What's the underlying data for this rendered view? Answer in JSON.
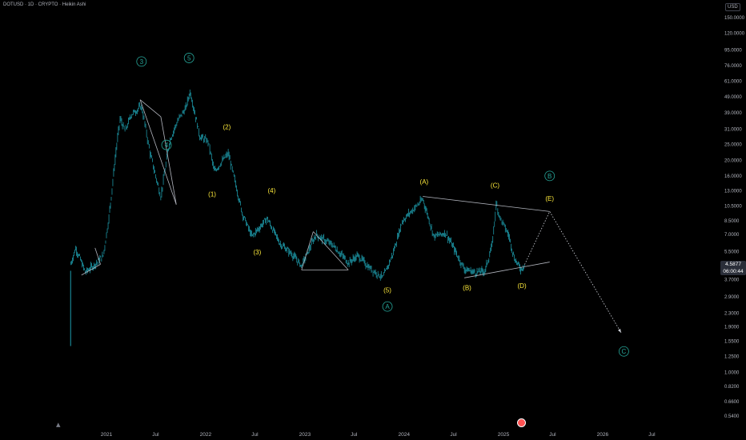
{
  "header": {
    "ticker": "DOTUSD · 1D · CRYPTO · Heikin Ashi",
    "currency": "USD"
  },
  "price_tag": {
    "price": "4.5877",
    "countdown": "06:00:44"
  },
  "icons": {
    "logo": "tradingview-logo-icon",
    "cursor": "replay-cursor-icon"
  },
  "colors": {
    "background": "#000000",
    "candles": "#26c6da",
    "wave_labels_primary": "#26a69a",
    "wave_labels_secondary": "#ffeb3b",
    "trendlines": "#b2b5be"
  },
  "chart_data": {
    "type": "line",
    "scale": "log",
    "style": "Heikin Ashi candles",
    "x_ticks": [
      "2021",
      "Jul",
      "2022",
      "Jul",
      "2023",
      "Jul",
      "2024",
      "Jul",
      "2025",
      "Jul",
      "2026",
      "Jul"
    ],
    "y_ticks": [
      "150.0000",
      "120.0000",
      "95.0000",
      "76.0000",
      "61.0000",
      "49.0000",
      "39.0000",
      "31.0000",
      "25.0000",
      "20.0000",
      "16.0000",
      "13.0000",
      "10.5000",
      "8.5000",
      "7.0000",
      "5.5000",
      "3.7000",
      "2.9000",
      "2.3000",
      "1.9000",
      "1.5500",
      "1.2500",
      "1.0000",
      "0.8200",
      "0.6600",
      "0.5400"
    ],
    "ylim": [
      0.5,
      165
    ],
    "series": [
      {
        "values": [
          {
            "x": "2020-08-20",
            "y": 4.5
          },
          {
            "x": "2020-09-10",
            "y": 5.8
          },
          {
            "x": "2020-10-15",
            "y": 4.1
          },
          {
            "x": "2020-11-20",
            "y": 4.6
          },
          {
            "x": "2020-12-20",
            "y": 5.2
          },
          {
            "x": "2021-01-10",
            "y": 9.0
          },
          {
            "x": "2021-02-05",
            "y": 23
          },
          {
            "x": "2021-02-20",
            "y": 36
          },
          {
            "x": "2021-03-10",
            "y": 30
          },
          {
            "x": "2021-04-01",
            "y": 38
          },
          {
            "x": "2021-05-10",
            "y": 43
          },
          {
            "x": "2021-06-10",
            "y": 22
          },
          {
            "x": "2021-07-20",
            "y": 12
          },
          {
            "x": "2021-08-20",
            "y": 26
          },
          {
            "x": "2021-09-20",
            "y": 35
          },
          {
            "x": "2021-10-20",
            "y": 42
          },
          {
            "x": "2021-11-04",
            "y": 53
          },
          {
            "x": "2021-12-10",
            "y": 28
          },
          {
            "x": "2022-01-10",
            "y": 26
          },
          {
            "x": "2022-02-01",
            "y": 17
          },
          {
            "x": "2022-03-25",
            "y": 22
          },
          {
            "x": "2022-05-15",
            "y": 9.5
          },
          {
            "x": "2022-06-20",
            "y": 6.8
          },
          {
            "x": "2022-08-15",
            "y": 8.8
          },
          {
            "x": "2022-10-01",
            "y": 6.2
          },
          {
            "x": "2022-11-15",
            "y": 5.3
          },
          {
            "x": "2022-12-20",
            "y": 4.5
          },
          {
            "x": "2023-02-10",
            "y": 7.0
          },
          {
            "x": "2023-04-15",
            "y": 6.0
          },
          {
            "x": "2023-06-10",
            "y": 4.7
          },
          {
            "x": "2023-07-15",
            "y": 5.2
          },
          {
            "x": "2023-08-25",
            "y": 4.4
          },
          {
            "x": "2023-10-15",
            "y": 3.8
          },
          {
            "x": "2023-11-20",
            "y": 5.3
          },
          {
            "x": "2023-12-25",
            "y": 8.5
          },
          {
            "x": "2024-03-10",
            "y": 11.5
          },
          {
            "x": "2024-04-20",
            "y": 6.8
          },
          {
            "x": "2024-06-01",
            "y": 7.2
          },
          {
            "x": "2024-07-01",
            "y": 5.8
          },
          {
            "x": "2024-08-10",
            "y": 4.3
          },
          {
            "x": "2024-09-20",
            "y": 4.1
          },
          {
            "x": "2024-10-25",
            "y": 4.2
          },
          {
            "x": "2024-11-20",
            "y": 6.0
          },
          {
            "x": "2024-12-05",
            "y": 10.8
          },
          {
            "x": "2024-12-20",
            "y": 8.8
          },
          {
            "x": "2025-01-20",
            "y": 6.9
          },
          {
            "x": "2025-02-10",
            "y": 5.0
          },
          {
            "x": "2025-03-05",
            "y": 4.3
          },
          {
            "x": "2025-03-20",
            "y": 4.59
          }
        ]
      }
    ],
    "wave_labels": [
      {
        "text": "3",
        "x": "2021-05-10",
        "y": 78,
        "color": "primary",
        "circled": true
      },
      {
        "text": "5",
        "x": "2021-11-01",
        "y": 82,
        "color": "primary",
        "circled": true
      },
      {
        "text": "4",
        "x": "2021-08-10",
        "y": 24,
        "color": "primary",
        "circled": true
      },
      {
        "text": "(2)",
        "x": "2022-03-20",
        "y": 31,
        "color": "secondary",
        "circled": false
      },
      {
        "text": "(1)",
        "x": "2022-01-25",
        "y": 12,
        "color": "secondary",
        "circled": false
      },
      {
        "text": "(4)",
        "x": "2022-09-01",
        "y": 12.6,
        "color": "secondary",
        "circled": false
      },
      {
        "text": "(3)",
        "x": "2022-07-10",
        "y": 5.3,
        "color": "secondary",
        "circled": false
      },
      {
        "text": "(5)",
        "x": "2023-11-01",
        "y": 3.1,
        "color": "secondary",
        "circled": false
      },
      {
        "text": "A",
        "x": "2023-11-01",
        "y": 2.45,
        "color": "primary",
        "circled": true
      },
      {
        "text": "(A)",
        "x": "2024-03-15",
        "y": 14.3,
        "color": "secondary",
        "circled": false
      },
      {
        "text": "(B)",
        "x": "2024-08-20",
        "y": 3.2,
        "color": "secondary",
        "circled": false
      },
      {
        "text": "(C)",
        "x": "2024-12-01",
        "y": 13.6,
        "color": "secondary",
        "circled": false
      },
      {
        "text": "(D)",
        "x": "2025-03-10",
        "y": 3.3,
        "color": "secondary",
        "circled": false
      },
      {
        "text": "B",
        "x": "2025-06-20",
        "y": 15.5,
        "color": "primary",
        "circled": true
      },
      {
        "text": "(E)",
        "x": "2025-06-20",
        "y": 11.3,
        "color": "secondary",
        "circled": false
      },
      {
        "text": "C",
        "x": "2026-03-20",
        "y": 1.3,
        "color": "primary",
        "circled": true
      }
    ],
    "trendlines": [
      {
        "from": {
          "x": "2020-10-01",
          "y": 3.95
        },
        "to": {
          "x": "2020-12-10",
          "y": 4.6
        }
      },
      {
        "from": {
          "x": "2020-12-10",
          "y": 4.6
        },
        "to": {
          "x": "2020-11-20",
          "y": 5.8
        }
      },
      {
        "from": {
          "x": "2021-05-05",
          "y": 47
        },
        "to": {
          "x": "2021-07-20",
          "y": 37
        }
      },
      {
        "from": {
          "x": "2021-07-20",
          "y": 37
        },
        "to": {
          "x": "2021-09-15",
          "y": 10.7
        }
      },
      {
        "from": {
          "x": "2021-09-15",
          "y": 10.7
        },
        "to": {
          "x": "2021-05-05",
          "y": 47
        }
      },
      {
        "from": {
          "x": "2022-12-20",
          "y": 4.25
        },
        "to": {
          "x": "2023-06-10",
          "y": 4.25
        }
      },
      {
        "from": {
          "x": "2023-06-10",
          "y": 4.25
        },
        "to": {
          "x": "2023-02-01",
          "y": 7.3
        }
      },
      {
        "from": {
          "x": "2023-02-01",
          "y": 7.3
        },
        "to": {
          "x": "2022-12-20",
          "y": 4.25
        }
      },
      {
        "from": {
          "x": "2024-03-10",
          "y": 12.0
        },
        "to": {
          "x": "2025-06-20",
          "y": 9.7
        }
      },
      {
        "from": {
          "x": "2024-08-10",
          "y": 3.8
        },
        "to": {
          "x": "2025-06-20",
          "y": 4.75
        }
      }
    ],
    "projection": [
      {
        "x": "2025-03-20",
        "y": 4.59
      },
      {
        "x": "2025-06-20",
        "y": 9.7
      },
      {
        "x": "2026-03-10",
        "y": 1.75
      }
    ]
  }
}
